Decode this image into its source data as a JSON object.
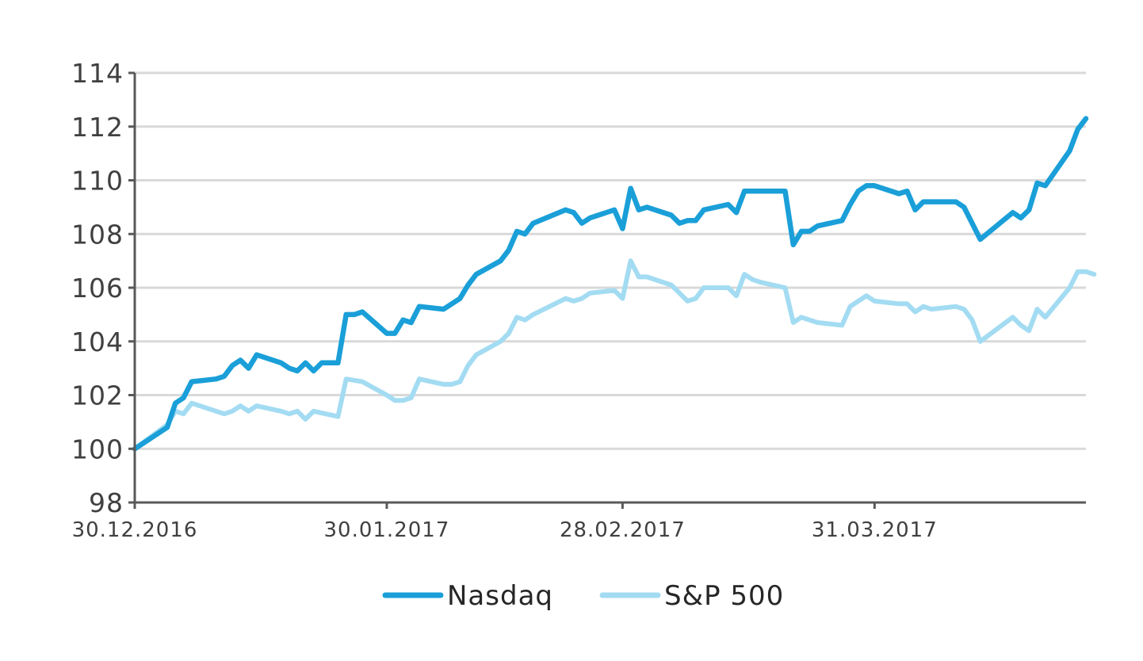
{
  "chart_data": {
    "type": "line",
    "title": "",
    "xlabel": "",
    "ylabel": "",
    "ylim": [
      98,
      114
    ],
    "yticks": [
      98,
      100,
      102,
      104,
      106,
      108,
      110,
      112,
      114
    ],
    "xlim": [
      "2016-12-30",
      "2017-04-26"
    ],
    "xticks": [
      {
        "date": "2016-12-30",
        "label": "30.12.2016"
      },
      {
        "date": "2017-01-30",
        "label": "30.01.2017"
      },
      {
        "date": "2017-02-28",
        "label": "28.02.2017"
      },
      {
        "date": "2017-03-31",
        "label": "31.03.2017"
      }
    ],
    "grid": true,
    "legend_position": "bottom",
    "series": [
      {
        "name": "Nasdaq",
        "color": "#1a9fd8",
        "points": [
          [
            "2016-12-30",
            100.0
          ],
          [
            "2017-01-03",
            100.8
          ],
          [
            "2017-01-04",
            101.7
          ],
          [
            "2017-01-05",
            101.9
          ],
          [
            "2017-01-06",
            102.5
          ],
          [
            "2017-01-09",
            102.6
          ],
          [
            "2017-01-10",
            102.7
          ],
          [
            "2017-01-11",
            103.1
          ],
          [
            "2017-01-12",
            103.3
          ],
          [
            "2017-01-13",
            103.0
          ],
          [
            "2017-01-14",
            103.5
          ],
          [
            "2017-01-17",
            103.2
          ],
          [
            "2017-01-18",
            103.0
          ],
          [
            "2017-01-19",
            102.9
          ],
          [
            "2017-01-20",
            103.2
          ],
          [
            "2017-01-21",
            102.9
          ],
          [
            "2017-01-22",
            103.2
          ],
          [
            "2017-01-24",
            103.2
          ],
          [
            "2017-01-25",
            105.0
          ],
          [
            "2017-01-26",
            105.0
          ],
          [
            "2017-01-27",
            105.1
          ],
          [
            "2017-01-30",
            104.3
          ],
          [
            "2017-01-31",
            104.3
          ],
          [
            "2017-02-01",
            104.8
          ],
          [
            "2017-02-02",
            104.7
          ],
          [
            "2017-02-03",
            105.3
          ],
          [
            "2017-02-06",
            105.2
          ],
          [
            "2017-02-07",
            105.4
          ],
          [
            "2017-02-08",
            105.6
          ],
          [
            "2017-02-09",
            106.1
          ],
          [
            "2017-02-10",
            106.5
          ],
          [
            "2017-02-13",
            107.0
          ],
          [
            "2017-02-14",
            107.4
          ],
          [
            "2017-02-15",
            108.1
          ],
          [
            "2017-02-16",
            108.0
          ],
          [
            "2017-02-17",
            108.4
          ],
          [
            "2017-02-21",
            108.9
          ],
          [
            "2017-02-22",
            108.8
          ],
          [
            "2017-02-23",
            108.4
          ],
          [
            "2017-02-24",
            108.6
          ],
          [
            "2017-02-27",
            108.9
          ],
          [
            "2017-02-28",
            108.2
          ],
          [
            "2017-03-01",
            109.7
          ],
          [
            "2017-03-02",
            108.9
          ],
          [
            "2017-03-03",
            109.0
          ],
          [
            "2017-03-06",
            108.7
          ],
          [
            "2017-03-07",
            108.4
          ],
          [
            "2017-03-08",
            108.5
          ],
          [
            "2017-03-09",
            108.5
          ],
          [
            "2017-03-10",
            108.9
          ],
          [
            "2017-03-13",
            109.1
          ],
          [
            "2017-03-14",
            108.8
          ],
          [
            "2017-03-15",
            109.6
          ],
          [
            "2017-03-16",
            109.6
          ],
          [
            "2017-03-20",
            109.6
          ],
          [
            "2017-03-21",
            107.6
          ],
          [
            "2017-03-22",
            108.1
          ],
          [
            "2017-03-23",
            108.1
          ],
          [
            "2017-03-24",
            108.3
          ],
          [
            "2017-03-27",
            108.5
          ],
          [
            "2017-03-28",
            109.1
          ],
          [
            "2017-03-29",
            109.6
          ],
          [
            "2017-03-30",
            109.8
          ],
          [
            "2017-03-31",
            109.8
          ],
          [
            "2017-04-03",
            109.5
          ],
          [
            "2017-04-04",
            109.6
          ],
          [
            "2017-04-05",
            108.9
          ],
          [
            "2017-04-06",
            109.2
          ],
          [
            "2017-04-07",
            109.2
          ],
          [
            "2017-04-10",
            109.2
          ],
          [
            "2017-04-11",
            109.0
          ],
          [
            "2017-04-13",
            107.8
          ],
          [
            "2017-04-17",
            108.8
          ],
          [
            "2017-04-18",
            108.6
          ],
          [
            "2017-04-19",
            108.9
          ],
          [
            "2017-04-20",
            109.9
          ],
          [
            "2017-04-21",
            109.8
          ],
          [
            "2017-04-24",
            111.1
          ],
          [
            "2017-04-25",
            111.9
          ],
          [
            "2017-04-26",
            112.3
          ]
        ]
      },
      {
        "name": "S&P 500",
        "color": "#a3dcf2",
        "points": [
          [
            "2016-12-30",
            100.0
          ],
          [
            "2017-01-03",
            100.9
          ],
          [
            "2017-01-04",
            101.4
          ],
          [
            "2017-01-05",
            101.3
          ],
          [
            "2017-01-06",
            101.7
          ],
          [
            "2017-01-09",
            101.4
          ],
          [
            "2017-01-10",
            101.3
          ],
          [
            "2017-01-11",
            101.4
          ],
          [
            "2017-01-12",
            101.6
          ],
          [
            "2017-01-13",
            101.4
          ],
          [
            "2017-01-14",
            101.6
          ],
          [
            "2017-01-17",
            101.4
          ],
          [
            "2017-01-18",
            101.3
          ],
          [
            "2017-01-19",
            101.4
          ],
          [
            "2017-01-20",
            101.1
          ],
          [
            "2017-01-21",
            101.4
          ],
          [
            "2017-01-24",
            101.2
          ],
          [
            "2017-01-25",
            102.6
          ],
          [
            "2017-01-27",
            102.5
          ],
          [
            "2017-01-30",
            102.0
          ],
          [
            "2017-01-31",
            101.8
          ],
          [
            "2017-02-01",
            101.8
          ],
          [
            "2017-02-02",
            101.9
          ],
          [
            "2017-02-03",
            102.6
          ],
          [
            "2017-02-06",
            102.4
          ],
          [
            "2017-02-07",
            102.4
          ],
          [
            "2017-02-08",
            102.5
          ],
          [
            "2017-02-09",
            103.1
          ],
          [
            "2017-02-10",
            103.5
          ],
          [
            "2017-02-13",
            104.0
          ],
          [
            "2017-02-14",
            104.3
          ],
          [
            "2017-02-15",
            104.9
          ],
          [
            "2017-02-16",
            104.8
          ],
          [
            "2017-02-17",
            105.0
          ],
          [
            "2017-02-21",
            105.6
          ],
          [
            "2017-02-22",
            105.5
          ],
          [
            "2017-02-23",
            105.6
          ],
          [
            "2017-02-24",
            105.8
          ],
          [
            "2017-02-27",
            105.9
          ],
          [
            "2017-02-28",
            105.6
          ],
          [
            "2017-03-01",
            107.0
          ],
          [
            "2017-03-02",
            106.4
          ],
          [
            "2017-03-03",
            106.4
          ],
          [
            "2017-03-06",
            106.1
          ],
          [
            "2017-03-07",
            105.8
          ],
          [
            "2017-03-08",
            105.5
          ],
          [
            "2017-03-09",
            105.6
          ],
          [
            "2017-03-10",
            106.0
          ],
          [
            "2017-03-13",
            106.0
          ],
          [
            "2017-03-14",
            105.7
          ],
          [
            "2017-03-15",
            106.5
          ],
          [
            "2017-03-16",
            106.3
          ],
          [
            "2017-03-17",
            106.2
          ],
          [
            "2017-03-20",
            106.0
          ],
          [
            "2017-03-21",
            104.7
          ],
          [
            "2017-03-22",
            104.9
          ],
          [
            "2017-03-23",
            104.8
          ],
          [
            "2017-03-24",
            104.7
          ],
          [
            "2017-03-27",
            104.6
          ],
          [
            "2017-03-28",
            105.3
          ],
          [
            "2017-03-29",
            105.5
          ],
          [
            "2017-03-30",
            105.7
          ],
          [
            "2017-03-31",
            105.5
          ],
          [
            "2017-04-03",
            105.4
          ],
          [
            "2017-04-04",
            105.4
          ],
          [
            "2017-04-05",
            105.1
          ],
          [
            "2017-04-06",
            105.3
          ],
          [
            "2017-04-07",
            105.2
          ],
          [
            "2017-04-10",
            105.3
          ],
          [
            "2017-04-11",
            105.2
          ],
          [
            "2017-04-12",
            104.8
          ],
          [
            "2017-04-13",
            104.0
          ],
          [
            "2017-04-17",
            104.9
          ],
          [
            "2017-04-18",
            104.6
          ],
          [
            "2017-04-19",
            104.4
          ],
          [
            "2017-04-20",
            105.2
          ],
          [
            "2017-04-21",
            104.9
          ],
          [
            "2017-04-24",
            106.0
          ],
          [
            "2017-04-25",
            106.6
          ],
          [
            "2017-04-26",
            106.6
          ],
          [
            "2017-04-27",
            106.5
          ]
        ]
      }
    ]
  }
}
